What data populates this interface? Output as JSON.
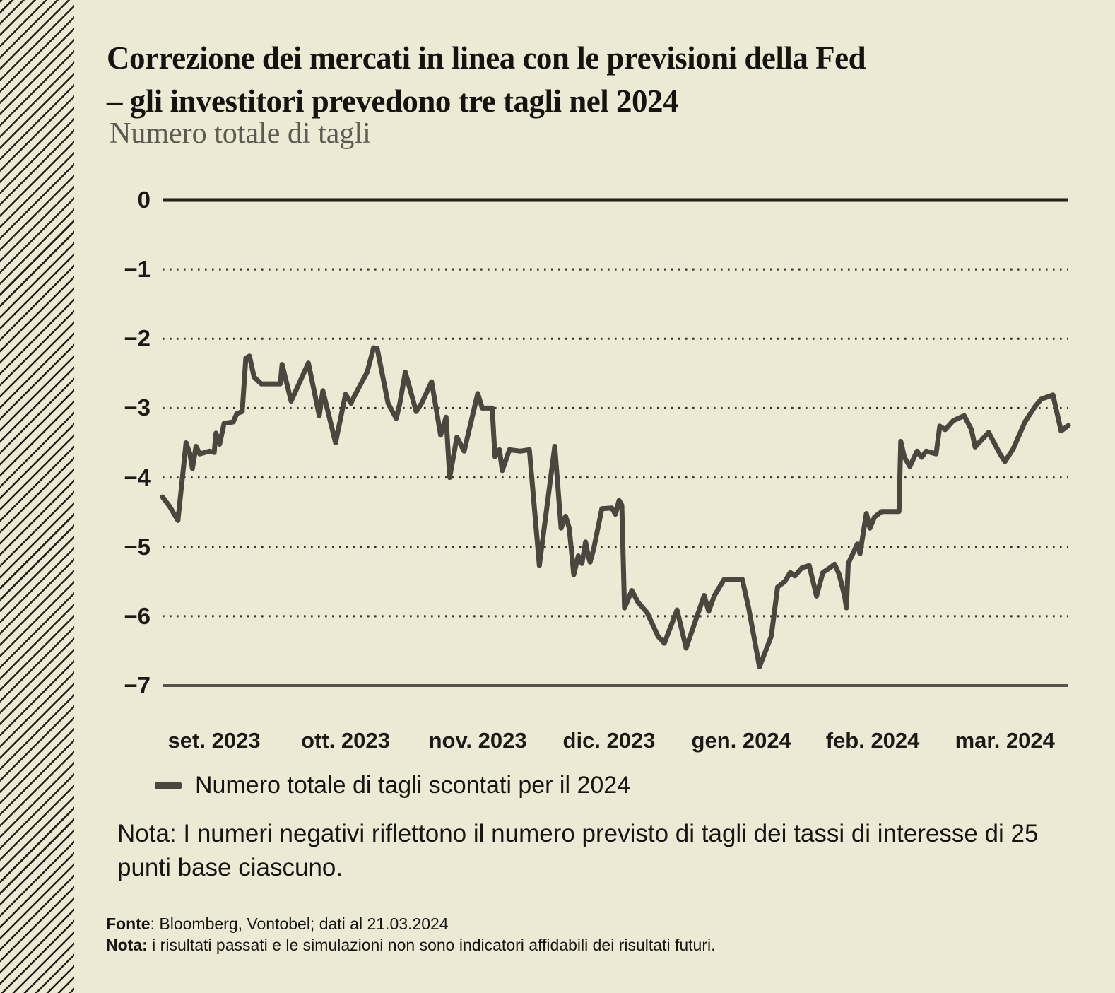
{
  "header": {
    "title_line1": "Correzione dei mercati in linea con le previsioni della Fed",
    "title_line2": "– gli investitori prevedono tre tagli nel 2024",
    "subtitle": "Numero totale di tagli"
  },
  "legend": {
    "marker": "dash-icon",
    "label": "Numero totale di tagli scontati per il 2024"
  },
  "note": "Nota: I numeri negativi riflettono il numero previsto di tagli dei tassi di interesse di 25 punti base ciascuno.",
  "footer": {
    "fonte_label": "Fonte",
    "fonte_rest": ": Bloomberg, Vontobel; dati al 21.03.2024",
    "nota_label": "Nota:",
    "nota_rest": " i risultati passati e le simulazioni non sono indicatori affidabili dei risultati futuri."
  },
  "colors": {
    "background": "#ece9d5",
    "hatch_line": "#23211b",
    "title_text": "#14130e",
    "subtitle_text": "#5c5b51",
    "series_line": "#4c463e",
    "grid_dotted": "#34322a",
    "zero_line": "#22211b",
    "bottom_line": "#58544b",
    "axis_label_text": "#1b1a14"
  },
  "chart_data": {
    "type": "line",
    "title": "Numero totale di tagli",
    "xlabel": "",
    "ylabel": "",
    "ylim": [
      -7,
      0
    ],
    "yticks": [
      0,
      -1,
      -2,
      -3,
      -4,
      -5,
      -6,
      -7
    ],
    "solid_gridlines": [
      0,
      -7
    ],
    "dotted_gridlines": [
      -1,
      -2,
      -3,
      -4,
      -5,
      -6
    ],
    "legend_position": "bottom",
    "x_axis": {
      "type": "time-percent",
      "tick_labels": [
        "set. 2023",
        "ott. 2023",
        "nov. 2023",
        "dic. 2023",
        "gen. 2024",
        "feb. 2024",
        "mar. 2024"
      ],
      "tick_positions_pct": [
        5.7,
        20.2,
        34.8,
        49.3,
        63.9,
        78.4,
        93.0
      ]
    },
    "series": [
      {
        "name": "Numero totale di tagli scontati per il 2024",
        "points": [
          [
            0,
            -4.28
          ],
          [
            0.8,
            -4.42
          ],
          [
            1.7,
            -4.62
          ],
          [
            2.6,
            -3.5
          ],
          [
            3,
            -3.65
          ],
          [
            3.3,
            -3.87
          ],
          [
            3.7,
            -3.55
          ],
          [
            4.1,
            -3.66
          ],
          [
            5.2,
            -3.62
          ],
          [
            5.7,
            -3.64
          ],
          [
            5.9,
            -3.36
          ],
          [
            6.3,
            -3.52
          ],
          [
            6.8,
            -3.22
          ],
          [
            7.8,
            -3.2
          ],
          [
            8.2,
            -3.08
          ],
          [
            8.8,
            -3.05
          ],
          [
            9.2,
            -2.28
          ],
          [
            9.6,
            -2.25
          ],
          [
            10.1,
            -2.55
          ],
          [
            10.9,
            -2.65
          ],
          [
            13,
            -2.65
          ],
          [
            13.2,
            -2.37
          ],
          [
            14.2,
            -2.9
          ],
          [
            16.1,
            -2.35
          ],
          [
            17.3,
            -3.11
          ],
          [
            17.7,
            -2.75
          ],
          [
            19.1,
            -3.5
          ],
          [
            20.2,
            -2.8
          ],
          [
            20.8,
            -2.93
          ],
          [
            21.2,
            -2.82
          ],
          [
            22.6,
            -2.48
          ],
          [
            23.3,
            -2.13
          ],
          [
            23.7,
            -2.14
          ],
          [
            24.9,
            -2.93
          ],
          [
            25.8,
            -3.15
          ],
          [
            26.2,
            -2.93
          ],
          [
            26.8,
            -2.48
          ],
          [
            28,
            -3.05
          ],
          [
            28.6,
            -2.93
          ],
          [
            29.7,
            -2.62
          ],
          [
            30.7,
            -3.39
          ],
          [
            31.3,
            -3.13
          ],
          [
            31.7,
            -4
          ],
          [
            32.5,
            -3.42
          ],
          [
            33.3,
            -3.62
          ],
          [
            34.8,
            -2.79
          ],
          [
            35.3,
            -3
          ],
          [
            36.4,
            -3
          ],
          [
            36.7,
            -3.7
          ],
          [
            37.2,
            -3.6
          ],
          [
            37.5,
            -3.9
          ],
          [
            37.9,
            -3.75
          ],
          [
            38.3,
            -3.6
          ],
          [
            39.5,
            -3.62
          ],
          [
            40.5,
            -3.6
          ],
          [
            41.6,
            -5.27
          ],
          [
            43.3,
            -3.55
          ],
          [
            44,
            -4.73
          ],
          [
            44.5,
            -4.56
          ],
          [
            44.9,
            -4.73
          ],
          [
            45.4,
            -5.4
          ],
          [
            45.9,
            -5.13
          ],
          [
            46.3,
            -5.24
          ],
          [
            46.7,
            -4.93
          ],
          [
            47,
            -5.13
          ],
          [
            47.2,
            -5.22
          ],
          [
            47.6,
            -5.03
          ],
          [
            48.5,
            -4.45
          ],
          [
            49.6,
            -4.44
          ],
          [
            50,
            -4.53
          ],
          [
            50.4,
            -4.33
          ],
          [
            50.7,
            -4.4
          ],
          [
            51,
            -5.88
          ],
          [
            51.8,
            -5.63
          ],
          [
            52.5,
            -5.8
          ],
          [
            53.5,
            -5.95
          ],
          [
            54.7,
            -6.29
          ],
          [
            55.4,
            -6.39
          ],
          [
            56.8,
            -5.91
          ],
          [
            57.8,
            -6.46
          ],
          [
            59.8,
            -5.7
          ],
          [
            60.3,
            -5.93
          ],
          [
            60.9,
            -5.71
          ],
          [
            62,
            -5.47
          ],
          [
            64,
            -5.47
          ],
          [
            64.7,
            -5.88
          ],
          [
            65.9,
            -6.73
          ],
          [
            66.7,
            -6.46
          ],
          [
            67.2,
            -6.29
          ],
          [
            67.9,
            -5.58
          ],
          [
            68.7,
            -5.5
          ],
          [
            69.3,
            -5.37
          ],
          [
            69.8,
            -5.42
          ],
          [
            70.6,
            -5.3
          ],
          [
            71.4,
            -5.27
          ],
          [
            72.2,
            -5.71
          ],
          [
            72.9,
            -5.37
          ],
          [
            73.7,
            -5.3
          ],
          [
            74.2,
            -5.25
          ],
          [
            74.7,
            -5.4
          ],
          [
            75.3,
            -5.71
          ],
          [
            75.5,
            -5.88
          ],
          [
            75.7,
            -5.24
          ],
          [
            76.7,
            -4.96
          ],
          [
            77,
            -5.1
          ],
          [
            77.7,
            -4.52
          ],
          [
            78.1,
            -4.73
          ],
          [
            78.6,
            -4.57
          ],
          [
            79.4,
            -4.49
          ],
          [
            81.3,
            -4.49
          ],
          [
            81.5,
            -3.48
          ],
          [
            81.9,
            -3.71
          ],
          [
            82.5,
            -3.84
          ],
          [
            83.3,
            -3.62
          ],
          [
            83.8,
            -3.71
          ],
          [
            84.3,
            -3.62
          ],
          [
            85.4,
            -3.66
          ],
          [
            85.8,
            -3.26
          ],
          [
            86.4,
            -3.31
          ],
          [
            87.3,
            -3.18
          ],
          [
            88.5,
            -3.11
          ],
          [
            89.3,
            -3.31
          ],
          [
            89.7,
            -3.56
          ],
          [
            91.2,
            -3.35
          ],
          [
            91.8,
            -3.5
          ],
          [
            92.5,
            -3.67
          ],
          [
            93,
            -3.77
          ],
          [
            93.9,
            -3.59
          ],
          [
            95.2,
            -3.2
          ],
          [
            96.3,
            -2.98
          ],
          [
            97,
            -2.87
          ],
          [
            98.3,
            -2.81
          ],
          [
            99.2,
            -3.33
          ],
          [
            100,
            -3.25
          ]
        ]
      }
    ]
  }
}
